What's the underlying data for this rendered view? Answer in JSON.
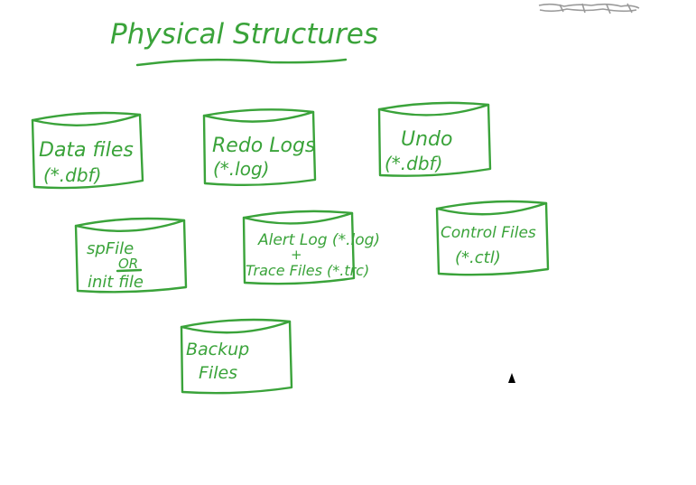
{
  "title": "Physical Structures",
  "colors": {
    "ink": "#3aa33a",
    "background": "#ffffff",
    "corner_logo": "#9a9a9a",
    "cursor": "#000000"
  },
  "stores": [
    {
      "id": "data-files",
      "lines": [
        "Data files",
        "(*.dbf)"
      ]
    },
    {
      "id": "redo-logs",
      "lines": [
        "Redo Logs",
        "(*.log)"
      ]
    },
    {
      "id": "undo",
      "lines": [
        "Undo",
        "(*.dbf)"
      ]
    },
    {
      "id": "spfile",
      "lines": [
        "spFile",
        "OR",
        "init file"
      ]
    },
    {
      "id": "alert-log",
      "lines": [
        "Alert Log (*.log)",
        "+",
        "Trace Files (*.trc)"
      ]
    },
    {
      "id": "control-files",
      "lines": [
        "Control Files",
        "(*.ctl)"
      ]
    },
    {
      "id": "backup-files",
      "lines": [
        "Backup",
        "Files"
      ]
    }
  ],
  "cursor_icon": "mouse-pointer-icon",
  "logo_icon": "handwritten-logo-icon"
}
